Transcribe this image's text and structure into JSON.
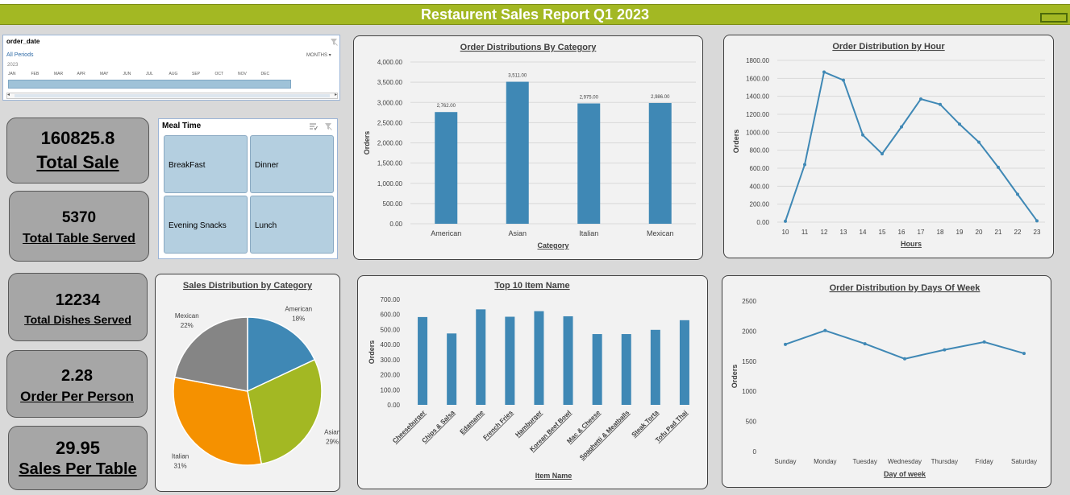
{
  "header": {
    "title": "Restaurent Sales Report Q1 2023"
  },
  "kpis": [
    {
      "value": "160825.8",
      "label": "Total Sale"
    },
    {
      "value": "5370",
      "label": "Total Table Served"
    },
    {
      "value": "12234",
      "label": "Total Dishes Served"
    },
    {
      "value": "2.28",
      "label": "Order Per Person"
    },
    {
      "value": "29.95",
      "label": "Sales Per Table"
    }
  ],
  "timeline": {
    "title": "order_date",
    "period": "All Periods",
    "level": "MONTHS",
    "year": "2023",
    "months": [
      "JAN",
      "FEB",
      "MAR",
      "APR",
      "MAY",
      "JUN",
      "JUL",
      "AUG",
      "SEP",
      "OCT",
      "NOV",
      "DEC"
    ]
  },
  "meal_slicer": {
    "title": "Meal Time",
    "items": [
      "BreakFast",
      "Dinner",
      "Evening Snacks",
      "Lunch"
    ]
  },
  "chart_data": [
    {
      "type": "bar",
      "title": "Order Distributions By Category",
      "xlabel": "Category",
      "ylabel": "Orders",
      "categories": [
        "American",
        "Asian",
        "Italian",
        "Mexican"
      ],
      "values": [
        2762,
        3511,
        2975,
        2986
      ],
      "data_labels": [
        "2,762.00",
        "3,511.00",
        "2,975.00",
        "2,986.00"
      ],
      "ylim": [
        0,
        4000
      ],
      "yticks": [
        "0.00",
        "500.00",
        "1,000.00",
        "1,500.00",
        "2,000.00",
        "2,500.00",
        "3,000.00",
        "3,500.00",
        "4,000.00"
      ],
      "color": "#3f88b5",
      "grid": true
    },
    {
      "type": "line",
      "title": "Order Distribution by Hour",
      "xlabel": "Hours",
      "ylabel": "Orders",
      "x": [
        "10",
        "11",
        "12",
        "13",
        "14",
        "15",
        "16",
        "17",
        "18",
        "19",
        "20",
        "21",
        "22",
        "23"
      ],
      "values": [
        10,
        640,
        1670,
        1580,
        970,
        760,
        1060,
        1370,
        1310,
        1090,
        890,
        610,
        310,
        15
      ],
      "ylim": [
        0,
        1800
      ],
      "yticks": [
        "0.00",
        "200.00",
        "400.00",
        "600.00",
        "800.00",
        "1000.00",
        "1200.00",
        "1400.00",
        "1600.00",
        "1800.00"
      ],
      "color": "#3f88b5",
      "grid": true
    },
    {
      "type": "pie",
      "title": "Sales Distribution by Category",
      "categories": [
        "American",
        "Asian",
        "Italian",
        "Mexican"
      ],
      "values": [
        18,
        29,
        31,
        22
      ],
      "labels": [
        "18%",
        "29%",
        "31%",
        "22%"
      ],
      "colors": [
        "#3f88b5",
        "#a3b823",
        "#f59100",
        "#858585"
      ]
    },
    {
      "type": "bar",
      "title": "Top 10 Item Name",
      "xlabel": "Item Name",
      "ylabel": "Orders",
      "categories": [
        "Cheeseburger",
        "Chips & Salsa",
        "Edamame",
        "French Fries",
        "Hamburger",
        "Korean Beef Bowl",
        "Mac & Cheese",
        "Spaghetti & Meatballs",
        "Steak Torta",
        "Tofu Pad Thai"
      ],
      "values": [
        583,
        474,
        634,
        585,
        622,
        588,
        470,
        470,
        498,
        562
      ],
      "ylim": [
        0,
        700
      ],
      "yticks": [
        "0.00",
        "100.00",
        "200.00",
        "300.00",
        "400.00",
        "500.00",
        "600.00",
        "700.00"
      ],
      "color": "#3f88b5",
      "grid": false
    },
    {
      "type": "line",
      "title": "Order Distribution by Days Of Week",
      "xlabel": "Day of week",
      "ylabel": "Orders",
      "x": [
        "Sunday",
        "Monday",
        "Tuesday",
        "Wednesday",
        "Thursday",
        "Friday",
        "Saturday"
      ],
      "values": [
        1780,
        2010,
        1790,
        1540,
        1690,
        1820,
        1630
      ],
      "ylim": [
        0,
        2500
      ],
      "yticks": [
        "0",
        "500",
        "1000",
        "1500",
        "2000",
        "2500"
      ],
      "color": "#3f88b5",
      "grid": false
    }
  ]
}
